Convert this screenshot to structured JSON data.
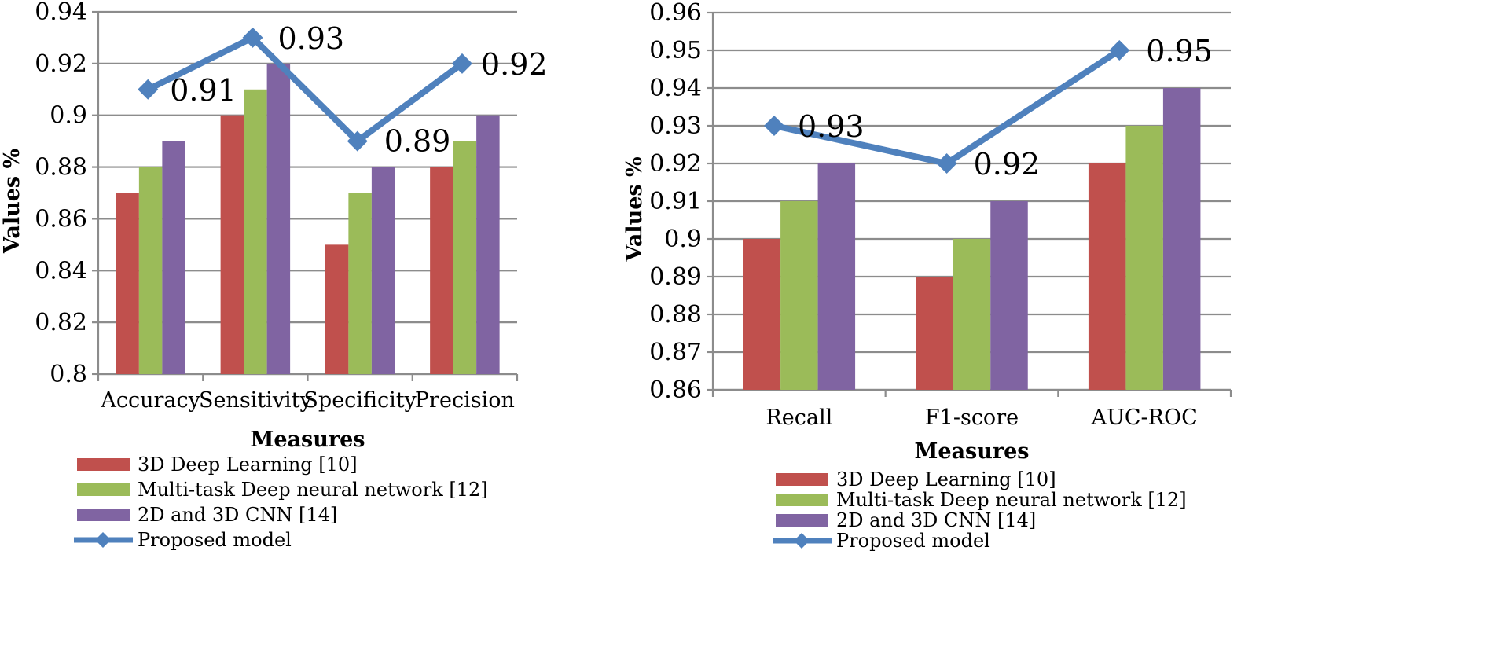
{
  "chart_data": [
    {
      "type": "bar",
      "categories": [
        "Accuracy",
        "Sensitivity",
        "Specificity",
        "Precision"
      ],
      "series": [
        {
          "name": "3D Deep Learning [10]",
          "values": [
            0.87,
            0.9,
            0.85,
            0.88
          ],
          "color": "#c0504d"
        },
        {
          "name": "Multi-task Deep neural network [12]",
          "values": [
            0.88,
            0.91,
            0.87,
            0.89
          ],
          "color": "#9bbb59"
        },
        {
          "name": "2D and 3D CNN [14]",
          "values": [
            0.89,
            0.92,
            0.88,
            0.9
          ],
          "color": "#8064a2"
        }
      ],
      "line_series": {
        "name": "Proposed model",
        "values": [
          0.91,
          0.93,
          0.89,
          0.92
        ],
        "labels": [
          "0.91",
          "0.93",
          "0.89",
          "0.92"
        ],
        "color": "#4f81bd"
      },
      "ylim": [
        0.8,
        0.94
      ],
      "yticks": [
        "0.8",
        "0.82",
        "0.84",
        "0.86",
        "0.88",
        "0.9",
        "0.92",
        "0.94"
      ],
      "xlabel": "Measures",
      "ylabel": "Values %",
      "grid": true,
      "legend_position": "bottom"
    },
    {
      "type": "bar",
      "categories": [
        "Recall",
        "F1-score",
        "AUC-ROC"
      ],
      "series": [
        {
          "name": "3D Deep Learning [10]",
          "values": [
            0.9,
            0.89,
            0.92
          ],
          "color": "#c0504d"
        },
        {
          "name": "Multi-task Deep neural network [12]",
          "values": [
            0.91,
            0.9,
            0.93
          ],
          "color": "#9bbb59"
        },
        {
          "name": "2D and 3D CNN [14]",
          "values": [
            0.92,
            0.91,
            0.94
          ],
          "color": "#8064a2"
        }
      ],
      "line_series": {
        "name": "Proposed model",
        "values": [
          0.93,
          0.92,
          0.95
        ],
        "labels": [
          "0.93",
          "0.92",
          "0.95"
        ],
        "color": "#4f81bd"
      },
      "ylim": [
        0.86,
        0.96
      ],
      "yticks": [
        "0.86",
        "0.87",
        "0.88",
        "0.89",
        "0.9",
        "0.91",
        "0.92",
        "0.93",
        "0.94",
        "0.95",
        "0.96"
      ],
      "xlabel": "Measures",
      "ylabel": "Values %",
      "grid": true,
      "legend_position": "bottom"
    }
  ]
}
